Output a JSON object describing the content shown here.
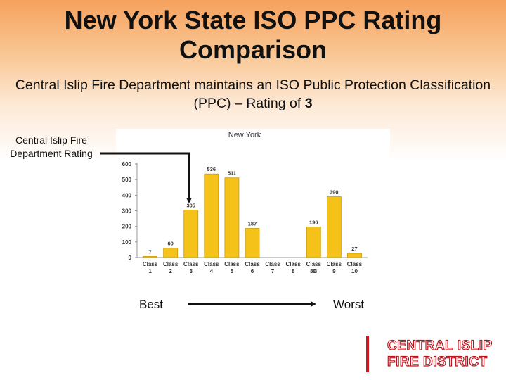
{
  "slide": {
    "title_line1": "New York State ISO PPC Rating",
    "title_line2": "Comparison",
    "subtitle_text": "Central Islip Fire Department maintains an ISO Public Protection Classification (PPC) – Rating of",
    "subtitle_rating": "3",
    "callout_line1": "Central Islip Fire",
    "callout_line2": "Department Rating",
    "best_label": "Best",
    "worst_label": "Worst",
    "logo_line1": "CENTRAL ISLIP",
    "logo_line2": "FIRE DISTRICT"
  },
  "colors": {
    "bar": "#f5c21a",
    "bar_edge": "#c99a05",
    "logo_red": "#d4141c"
  },
  "chart_data": {
    "type": "bar",
    "title": "New York",
    "categories": [
      "Class 1",
      "Class 2",
      "Class 3",
      "Class 4",
      "Class 5",
      "Class 6",
      "Class 7",
      "Class 8",
      "Class 8B",
      "Class 9",
      "Class 10"
    ],
    "tick_top": [
      "Class",
      "Class",
      "Class",
      "Class",
      "Class",
      "Class",
      "Class",
      "Class",
      "Class",
      "Class",
      "Class"
    ],
    "tick_bottom": [
      "1",
      "2",
      "3",
      "4",
      "5",
      "6",
      "7",
      "8",
      "8B",
      "9",
      "10"
    ],
    "values": [
      7,
      60,
      305,
      536,
      511,
      187,
      null,
      null,
      196,
      390,
      27
    ],
    "data_labels": [
      "7",
      "60",
      "305",
      "536",
      "511",
      "187",
      "",
      "",
      "196",
      "390",
      "27"
    ],
    "ylim": [
      0,
      600
    ],
    "yticks": [
      0,
      100,
      200,
      300,
      400,
      500,
      600
    ],
    "xlabel": "",
    "ylabel": "",
    "grid": false,
    "legend": "none"
  }
}
